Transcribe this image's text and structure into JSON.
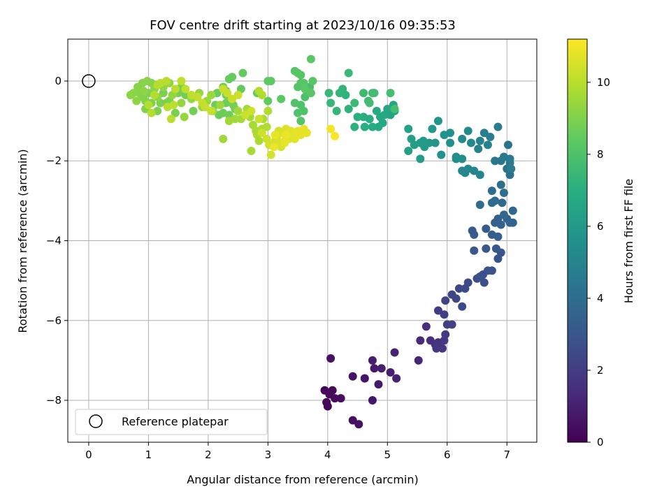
{
  "chart_data": {
    "type": "scatter",
    "title": "FOV centre drift starting at 2023/10/16 09:35:53",
    "xlabel": "Angular distance from reference (arcmin)",
    "ylabel": "Rotation from reference (arcmin)",
    "xlim": [
      -0.35,
      7.5
    ],
    "ylim": [
      -9.05,
      1.05
    ],
    "xticks": [
      0,
      1,
      2,
      3,
      4,
      5,
      6,
      7
    ],
    "yticks": [
      0,
      -2,
      -4,
      -6,
      -8
    ],
    "grid": true,
    "legend": {
      "position": "lower-left",
      "entries": [
        "Reference platepar"
      ]
    },
    "reference_point": {
      "x": 0,
      "y": 0
    },
    "colorbar": {
      "label": "Hours from first FF file",
      "range": [
        0,
        11.2
      ],
      "ticks": [
        0,
        2,
        4,
        6,
        8,
        10
      ],
      "colormap": "viridis"
    },
    "points": [
      [
        3.95,
        -7.75,
        0.1
      ],
      [
        3.98,
        -8.05,
        0.15
      ],
      [
        4.0,
        -8.15,
        0.2
      ],
      [
        4.03,
        -7.85,
        0.25
      ],
      [
        4.08,
        -7.75,
        0.3
      ],
      [
        4.12,
        -7.95,
        0.35
      ],
      [
        4.22,
        -7.95,
        0.4
      ],
      [
        4.42,
        -8.5,
        0.45
      ],
      [
        4.52,
        -8.6,
        0.5
      ],
      [
        4.05,
        -6.95,
        0.55
      ],
      [
        4.42,
        -7.4,
        0.6
      ],
      [
        4.62,
        -7.45,
        0.65
      ],
      [
        4.75,
        -8.0,
        0.7
      ],
      [
        4.78,
        -7.2,
        0.75
      ],
      [
        4.85,
        -7.6,
        0.8
      ],
      [
        4.75,
        -7.0,
        0.9
      ],
      [
        4.9,
        -7.2,
        0.95
      ],
      [
        5.05,
        -7.3,
        1.0
      ],
      [
        5.15,
        -7.45,
        1.05
      ],
      [
        5.12,
        -6.8,
        1.1
      ],
      [
        5.52,
        -7.0,
        1.2
      ],
      [
        5.55,
        -6.5,
        1.3
      ],
      [
        5.65,
        -6.15,
        1.4
      ],
      [
        5.72,
        -6.5,
        1.5
      ],
      [
        5.8,
        -6.6,
        1.6
      ],
      [
        5.85,
        -6.55,
        1.65
      ],
      [
        5.92,
        -6.7,
        1.7
      ],
      [
        5.82,
        -6.7,
        1.75
      ],
      [
        5.95,
        -6.5,
        1.8
      ],
      [
        5.97,
        -6.35,
        1.9
      ],
      [
        5.85,
        -5.75,
        2.0
      ],
      [
        5.95,
        -5.85,
        2.05
      ],
      [
        6.0,
        -6.1,
        2.1
      ],
      [
        6.08,
        -6.1,
        2.15
      ],
      [
        5.97,
        -5.5,
        2.2
      ],
      [
        6.08,
        -5.35,
        2.3
      ],
      [
        6.15,
        -5.45,
        2.35
      ],
      [
        6.2,
        -5.2,
        2.4
      ],
      [
        6.25,
        -5.65,
        2.45
      ],
      [
        6.3,
        -5.2,
        2.5
      ],
      [
        6.35,
        -5.05,
        2.55
      ],
      [
        6.5,
        -4.95,
        2.6
      ],
      [
        6.6,
        -4.85,
        2.65
      ],
      [
        6.62,
        -5.05,
        2.7
      ],
      [
        6.55,
        -4.9,
        2.75
      ],
      [
        6.68,
        -4.75,
        2.8
      ],
      [
        6.75,
        -4.75,
        2.85
      ],
      [
        6.85,
        -4.45,
        2.9
      ],
      [
        6.9,
        -4.3,
        2.95
      ],
      [
        6.82,
        -4.2,
        3.0
      ],
      [
        6.65,
        -4.2,
        3.05
      ],
      [
        6.45,
        -4.25,
        3.1
      ],
      [
        6.42,
        -3.75,
        3.15
      ],
      [
        6.45,
        -3.85,
        3.2
      ],
      [
        6.65,
        -3.7,
        3.25
      ],
      [
        6.75,
        -3.85,
        3.3
      ],
      [
        6.85,
        -3.9,
        3.35
      ],
      [
        6.8,
        -3.55,
        3.4
      ],
      [
        6.9,
        -3.6,
        3.45
      ],
      [
        6.85,
        -3.45,
        3.5
      ],
      [
        7.0,
        -3.45,
        3.55
      ],
      [
        7.05,
        -3.55,
        3.6
      ],
      [
        7.1,
        -3.55,
        3.65
      ],
      [
        7.1,
        -3.25,
        3.7
      ],
      [
        6.95,
        -3.35,
        3.75
      ],
      [
        6.92,
        -3.05,
        3.8
      ],
      [
        6.8,
        -3.0,
        3.85
      ],
      [
        6.75,
        -3.05,
        3.9
      ],
      [
        6.55,
        -3.1,
        3.95
      ],
      [
        6.75,
        -2.75,
        4.0
      ],
      [
        6.9,
        -2.6,
        4.05
      ],
      [
        6.95,
        -2.8,
        4.1
      ],
      [
        7.05,
        -2.35,
        4.15
      ],
      [
        7.0,
        -2.2,
        4.2
      ],
      [
        7.02,
        -1.6,
        4.3
      ],
      [
        6.9,
        -2.0,
        4.35
      ],
      [
        6.8,
        -2.0,
        4.4
      ],
      [
        6.95,
        -1.9,
        4.45
      ],
      [
        7.05,
        -2.05,
        4.5
      ],
      [
        7.05,
        -1.95,
        4.55
      ],
      [
        7.07,
        -2.2,
        4.6
      ],
      [
        6.85,
        -1.15,
        4.7
      ],
      [
        6.72,
        -1.4,
        4.75
      ],
      [
        6.62,
        -1.3,
        4.8
      ],
      [
        6.68,
        -1.6,
        4.85
      ],
      [
        6.55,
        -1.5,
        4.9
      ],
      [
        6.52,
        -1.7,
        4.95
      ],
      [
        6.55,
        -2.35,
        5.0
      ],
      [
        6.45,
        -2.25,
        5.05
      ],
      [
        6.35,
        -2.2,
        5.1
      ],
      [
        6.3,
        -2.3,
        5.15
      ],
      [
        6.25,
        -2.25,
        5.2
      ],
      [
        6.4,
        -1.55,
        5.25
      ],
      [
        6.35,
        -1.25,
        5.3
      ],
      [
        6.25,
        -1.45,
        5.35
      ],
      [
        6.15,
        -1.95,
        5.4
      ],
      [
        6.15,
        -1.9,
        5.45
      ],
      [
        6.25,
        -1.95,
        5.5
      ],
      [
        6.05,
        -1.55,
        5.55
      ],
      [
        6.05,
        -1.3,
        5.6
      ],
      [
        5.95,
        -1.35,
        5.65
      ],
      [
        5.9,
        -1.85,
        5.7
      ],
      [
        5.8,
        -1.55,
        5.75
      ],
      [
        5.85,
        -1.0,
        5.85
      ],
      [
        5.75,
        -1.2,
        5.9
      ],
      [
        5.7,
        -1.55,
        5.95
      ],
      [
        5.62,
        -1.65,
        6.0
      ],
      [
        5.6,
        -1.5,
        6.05
      ],
      [
        5.55,
        -1.55,
        6.1
      ],
      [
        5.55,
        -1.95,
        6.15
      ],
      [
        5.45,
        -1.6,
        6.2
      ],
      [
        5.4,
        -1.45,
        6.25
      ],
      [
        5.35,
        -1.75,
        6.3
      ],
      [
        5.35,
        -1.2,
        6.35
      ],
      [
        5.12,
        -0.75,
        6.4
      ],
      [
        5.05,
        -0.85,
        6.45
      ],
      [
        5.1,
        -0.6,
        6.5
      ],
      [
        5.0,
        -0.7,
        6.55
      ],
      [
        4.95,
        -0.85,
        6.6
      ],
      [
        4.92,
        -1.05,
        6.65
      ],
      [
        4.88,
        -0.9,
        6.7
      ],
      [
        4.82,
        -0.75,
        6.75
      ],
      [
        4.85,
        -1.15,
        6.8
      ],
      [
        4.75,
        -1.15,
        6.85
      ],
      [
        4.7,
        -0.95,
        6.9
      ],
      [
        4.6,
        -0.9,
        6.95
      ],
      [
        4.62,
        -1.15,
        7.0
      ],
      [
        4.5,
        -0.9,
        7.05
      ],
      [
        4.45,
        -1.15,
        7.1
      ],
      [
        4.35,
        -0.7,
        7.15
      ],
      [
        4.3,
        -0.35,
        7.2
      ],
      [
        4.25,
        -0.2,
        7.25
      ],
      [
        4.2,
        -0.3,
        7.3
      ],
      [
        4.15,
        -0.75,
        7.35
      ],
      [
        4.05,
        -0.55,
        7.4
      ],
      [
        4.02,
        -0.3,
        7.45
      ],
      [
        4.35,
        0.2,
        7.5
      ],
      [
        4.45,
        -0.55,
        7.55
      ],
      [
        4.6,
        -0.3,
        7.6
      ],
      [
        4.68,
        -0.5,
        7.65
      ],
      [
        4.75,
        -0.3,
        7.7
      ],
      [
        4.78,
        -0.3,
        7.72
      ],
      [
        4.7,
        -0.55,
        7.75
      ],
      [
        5.05,
        -0.3,
        7.78
      ],
      [
        5.12,
        -0.7,
        7.8
      ],
      [
        3.7,
        -0.15,
        7.85
      ],
      [
        3.65,
        -0.25,
        7.9
      ],
      [
        3.62,
        -0.4,
        7.95
      ],
      [
        3.55,
        -0.6,
        8.0
      ],
      [
        3.6,
        -0.75,
        8.02
      ],
      [
        3.5,
        -0.8,
        8.05
      ],
      [
        3.55,
        -1.0,
        8.08
      ],
      [
        3.45,
        -0.55,
        8.1
      ],
      [
        3.5,
        -0.15,
        8.12
      ],
      [
        3.55,
        -0.05,
        8.14
      ],
      [
        3.55,
        0.15,
        8.16
      ],
      [
        3.45,
        0.25,
        8.18
      ],
      [
        3.5,
        0.2,
        8.2
      ],
      [
        3.6,
        -0.05,
        8.22
      ],
      [
        3.72,
        -0.3,
        8.24
      ],
      [
        3.75,
        0.0,
        8.26
      ],
      [
        3.62,
        -0.2,
        8.28
      ],
      [
        3.72,
        0.55,
        8.3
      ],
      [
        3.22,
        -0.45,
        8.35
      ],
      [
        3.05,
        0.0,
        8.4
      ],
      [
        3.0,
        0.0,
        8.42
      ],
      [
        3.0,
        -0.5,
        8.44
      ],
      [
        2.82,
        -0.3,
        8.46
      ],
      [
        2.58,
        0.2,
        8.48
      ],
      [
        2.55,
        -0.2,
        8.5
      ],
      [
        2.4,
        0.1,
        8.52
      ],
      [
        2.35,
        0.05,
        8.54
      ],
      [
        2.3,
        -0.25,
        8.56
      ],
      [
        2.25,
        -0.15,
        8.58
      ],
      [
        2.15,
        -0.3,
        8.6
      ],
      [
        2.12,
        -0.6,
        8.62
      ],
      [
        2.18,
        -0.85,
        8.64
      ],
      [
        2.25,
        -0.8,
        8.66
      ],
      [
        2.3,
        -0.55,
        8.68
      ],
      [
        2.35,
        -0.85,
        8.7
      ],
      [
        2.45,
        -0.7,
        8.72
      ],
      [
        2.3,
        -0.35,
        8.74
      ],
      [
        2.42,
        -0.6,
        8.76
      ],
      [
        1.75,
        -0.75,
        8.78
      ],
      [
        1.62,
        -0.35,
        8.8
      ],
      [
        1.55,
        -0.15,
        8.82
      ],
      [
        1.5,
        -0.3,
        8.84
      ],
      [
        1.45,
        -0.8,
        8.86
      ],
      [
        1.35,
        -0.5,
        8.88
      ],
      [
        1.3,
        -0.55,
        8.9
      ],
      [
        1.25,
        -0.3,
        8.92
      ],
      [
        1.2,
        -0.55,
        8.94
      ],
      [
        1.15,
        -0.75,
        8.96
      ],
      [
        1.05,
        -0.55,
        8.98
      ],
      [
        1.0,
        -0.3,
        9.0
      ],
      [
        0.95,
        -0.7,
        9.02
      ],
      [
        0.95,
        -0.5,
        9.04
      ],
      [
        0.9,
        -0.4,
        9.06
      ],
      [
        0.85,
        -0.3,
        9.08
      ],
      [
        0.82,
        -0.15,
        9.1
      ],
      [
        0.9,
        -0.05,
        9.12
      ],
      [
        0.98,
        0.0,
        9.14
      ],
      [
        1.05,
        -0.05,
        9.16
      ],
      [
        1.1,
        -0.2,
        9.18
      ],
      [
        0.75,
        -0.3,
        9.2
      ],
      [
        0.7,
        -0.35,
        9.22
      ],
      [
        0.8,
        -0.5,
        9.24
      ],
      [
        0.92,
        -0.25,
        9.26
      ],
      [
        1.15,
        -0.4,
        9.28
      ],
      [
        1.25,
        -0.15,
        9.3
      ],
      [
        1.35,
        -0.05,
        9.32
      ],
      [
        1.4,
        -0.35,
        9.34
      ],
      [
        1.55,
        -0.55,
        9.36
      ],
      [
        1.6,
        -0.9,
        9.38
      ],
      [
        1.72,
        -0.45,
        9.4
      ],
      [
        1.85,
        -0.3,
        9.42
      ],
      [
        1.9,
        -0.65,
        9.44
      ],
      [
        1.98,
        -0.5,
        9.46
      ],
      [
        2.05,
        -0.35,
        9.48
      ],
      [
        2.08,
        -0.75,
        9.5
      ],
      [
        2.2,
        -0.6,
        9.52
      ],
      [
        2.25,
        -1.45,
        9.54
      ],
      [
        2.35,
        -1.0,
        9.56
      ],
      [
        2.45,
        -0.95,
        9.58
      ],
      [
        2.5,
        -0.75,
        9.6
      ],
      [
        2.55,
        -0.95,
        9.62
      ],
      [
        2.65,
        -0.7,
        9.64
      ],
      [
        2.7,
        -0.9,
        9.66
      ],
      [
        2.75,
        -1.1,
        9.68
      ],
      [
        2.72,
        -1.75,
        9.7
      ],
      [
        2.8,
        -1.25,
        9.72
      ],
      [
        2.85,
        -1.5,
        9.74
      ],
      [
        2.82,
        -1.35,
        9.76
      ],
      [
        2.9,
        -1.2,
        9.78
      ],
      [
        2.92,
        -0.95,
        9.8
      ],
      [
        3.0,
        -0.75,
        9.82
      ],
      [
        2.98,
        -1.15,
        9.84
      ],
      [
        2.9,
        -0.35,
        9.86
      ],
      [
        2.85,
        -0.25,
        9.88
      ],
      [
        1.0,
        -0.6,
        9.9
      ],
      [
        1.05,
        -0.8,
        9.92
      ],
      [
        1.1,
        -0.35,
        9.94
      ],
      [
        1.15,
        -0.1,
        9.96
      ],
      [
        1.2,
        -0.05,
        9.98
      ],
      [
        1.3,
        0.0,
        10.0
      ],
      [
        1.32,
        -0.65,
        10.02
      ],
      [
        1.38,
        -0.95,
        10.04
      ],
      [
        1.42,
        -0.6,
        10.06
      ],
      [
        1.45,
        -0.2,
        10.08
      ],
      [
        1.55,
        0.0,
        10.1
      ],
      [
        1.62,
        -0.2,
        10.12
      ],
      [
        1.72,
        -0.35,
        10.14
      ],
      [
        1.82,
        -0.4,
        10.16
      ],
      [
        1.9,
        -0.55,
        10.18
      ],
      [
        1.95,
        -0.65,
        10.2
      ],
      [
        2.05,
        -0.75,
        10.22
      ],
      [
        2.25,
        -0.2,
        10.24
      ],
      [
        2.32,
        -0.3,
        10.26
      ],
      [
        2.4,
        -0.45,
        10.28
      ],
      [
        2.5,
        -0.35,
        10.3
      ],
      [
        2.62,
        -0.85,
        10.32
      ],
      [
        2.72,
        -0.75,
        10.34
      ],
      [
        2.85,
        -0.95,
        10.36
      ],
      [
        2.9,
        -1.3,
        10.38
      ],
      [
        2.98,
        -1.45,
        10.4
      ],
      [
        3.02,
        -1.6,
        10.42
      ],
      [
        3.05,
        -1.85,
        10.44
      ],
      [
        3.08,
        -1.6,
        10.46
      ],
      [
        3.12,
        -1.5,
        10.48
      ],
      [
        3.15,
        -1.4,
        10.5
      ],
      [
        3.18,
        -1.25,
        10.52
      ],
      [
        3.2,
        -1.55,
        10.54
      ],
      [
        3.22,
        -1.65,
        10.56
      ],
      [
        3.25,
        -1.3,
        10.58
      ],
      [
        3.28,
        -1.5,
        10.6
      ],
      [
        3.3,
        -1.2,
        10.62
      ],
      [
        3.32,
        -1.4,
        10.64
      ],
      [
        3.35,
        -1.45,
        10.66
      ],
      [
        3.38,
        -1.25,
        10.68
      ],
      [
        3.4,
        -1.35,
        10.7
      ],
      [
        3.42,
        -1.3,
        10.72
      ],
      [
        3.45,
        -1.45,
        10.74
      ],
      [
        3.5,
        -1.25,
        10.76
      ],
      [
        3.55,
        -1.35,
        10.78
      ],
      [
        3.6,
        -1.2,
        10.8
      ],
      [
        3.65,
        -1.3,
        10.82
      ],
      [
        3.12,
        -1.35,
        10.84
      ],
      [
        3.28,
        -1.55,
        10.86
      ],
      [
        3.1,
        -1.65,
        10.88
      ],
      [
        3.3,
        -1.35,
        10.9
      ],
      [
        4.05,
        -1.2,
        11.0
      ],
      [
        4.12,
        -1.38,
        11.1
      ]
    ]
  }
}
